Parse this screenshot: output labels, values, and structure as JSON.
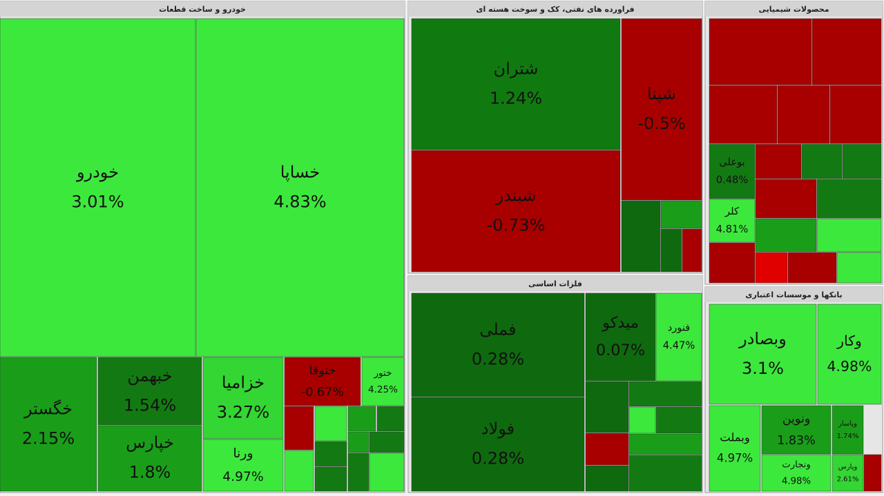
{
  "chart_data": {
    "type": "treemap",
    "sectors": [
      {
        "title": "خودرو و ساخت قطعات",
        "names": [
          "خودرو",
          "خساپا",
          "خگستر",
          "خبهمن",
          "خپارس",
          "خزامیا",
          "ورنا",
          "ختوقا",
          "ختور"
        ],
        "values": [
          3.01,
          4.83,
          2.15,
          1.54,
          1.8,
          3.27,
          4.97,
          -0.67,
          4.25
        ],
        "value_labels": [
          "3.01%",
          "4.83%",
          "2.15%",
          "1.54%",
          "1.8%",
          "3.27%",
          "4.97%",
          "-0.67%",
          "4.25%"
        ],
        "colors": [
          "#3de83d",
          "#3de83d",
          "#1a9e1a",
          "#137a13",
          "#1a9e1a",
          "#33d633",
          "#3de83d",
          "#a80000",
          "#3de83d"
        ]
      },
      {
        "title": "فراورده های نفتی، کک و سوخت هسته ای",
        "names": [
          "شتران",
          "شبندر",
          "شپنا"
        ],
        "values": [
          1.24,
          -0.73,
          -0.5
        ],
        "value_labels": [
          "1.24%",
          "-0.73%",
          "-0.5%"
        ],
        "colors": [
          "#107a10",
          "#a80000",
          "#a80000"
        ]
      },
      {
        "title": "محصولات شیمیایی",
        "names": [
          "بوعلی",
          "کلر"
        ],
        "values": [
          0.48,
          4.81
        ],
        "value_labels": [
          "0.48%",
          "4.81%"
        ],
        "colors": [
          "#137a13",
          "#3de83d"
        ]
      },
      {
        "title": "فلزات اساسی",
        "names": [
          "فملی",
          "فولاد",
          "میدکو",
          "فنورد"
        ],
        "values": [
          0.28,
          0.28,
          0.07,
          4.47
        ],
        "value_labels": [
          "0.28%",
          "0.28%",
          "0.07%",
          "4.47%"
        ],
        "colors": [
          "#0f6a0f",
          "#0f6a0f",
          "#0f6a0f",
          "#3de83d"
        ]
      },
      {
        "title": "بانکها و موسسات اعتباری",
        "names": [
          "وبصادر",
          "وکار",
          "وبملت",
          "ونوین",
          "ونجارت",
          "وپاسار",
          "وپارس"
        ],
        "values": [
          3.1,
          4.98,
          4.97,
          1.83,
          4.98,
          1.74,
          2.61
        ],
        "value_labels": [
          "3.1%",
          "4.98%",
          "4.97%",
          "1.83%",
          "4.98%",
          "1.74%",
          "2.61%"
        ],
        "colors": [
          "#3de83d",
          "#3de83d",
          "#3de83d",
          "#1a9e1a",
          "#3de83d",
          "#1a9e1a",
          "#33d633"
        ]
      }
    ]
  }
}
